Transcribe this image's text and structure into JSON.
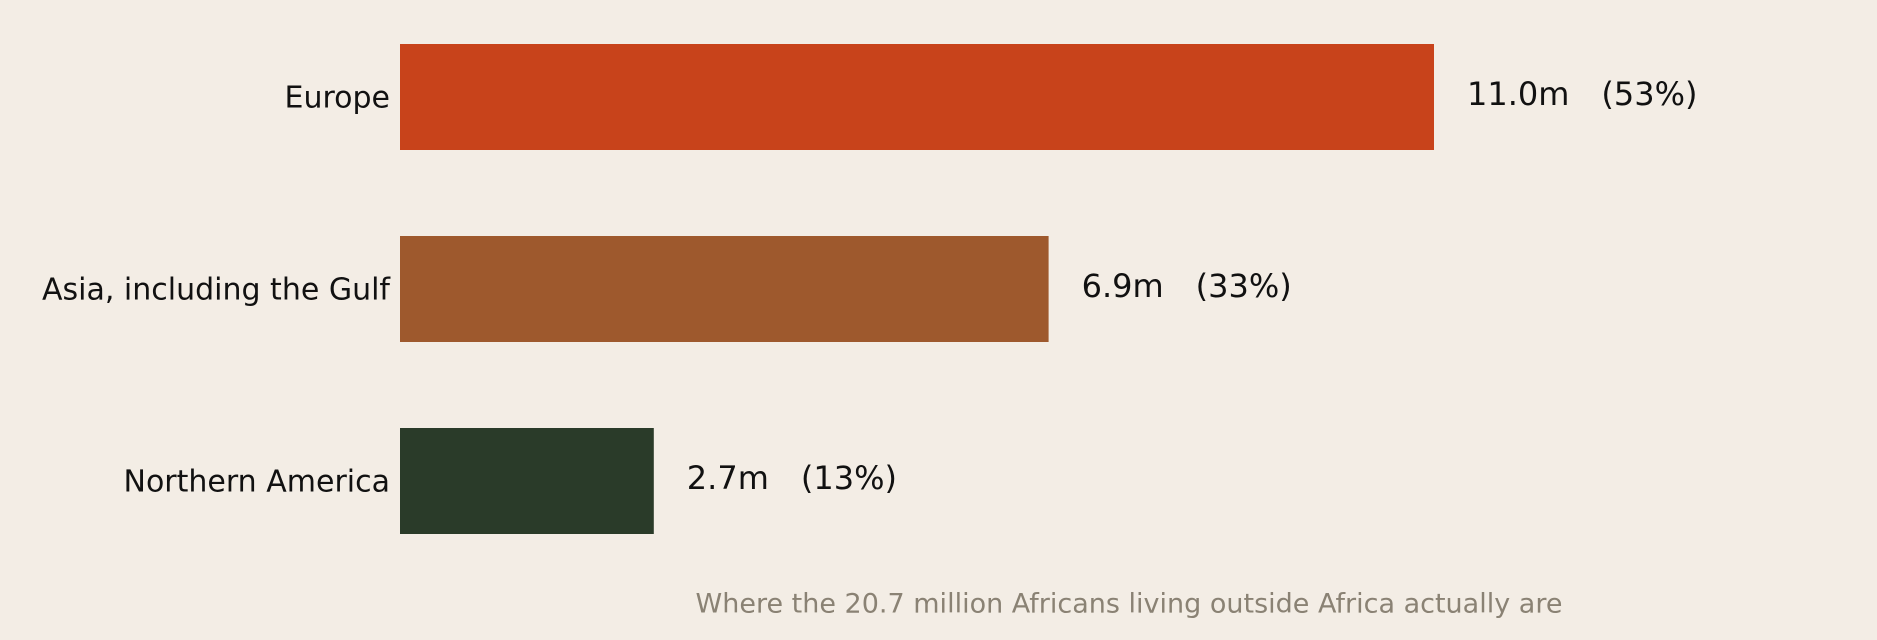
{
  "chart_data": {
    "type": "bar",
    "orientation": "horizontal",
    "categories": [
      "Europe",
      "Asia, including the Gulf",
      "Northern America"
    ],
    "values": [
      11.0,
      6.9,
      2.7
    ],
    "value_labels": [
      "11.0m",
      "6.9m",
      "2.7m"
    ],
    "share_labels": [
      "(53%)",
      "(33%)",
      "(13%)"
    ],
    "colors": [
      "#c8431b",
      "#9e592d",
      "#2a3b29"
    ],
    "caption": "Where the 20.7 million Africans living outside Africa actually are"
  }
}
